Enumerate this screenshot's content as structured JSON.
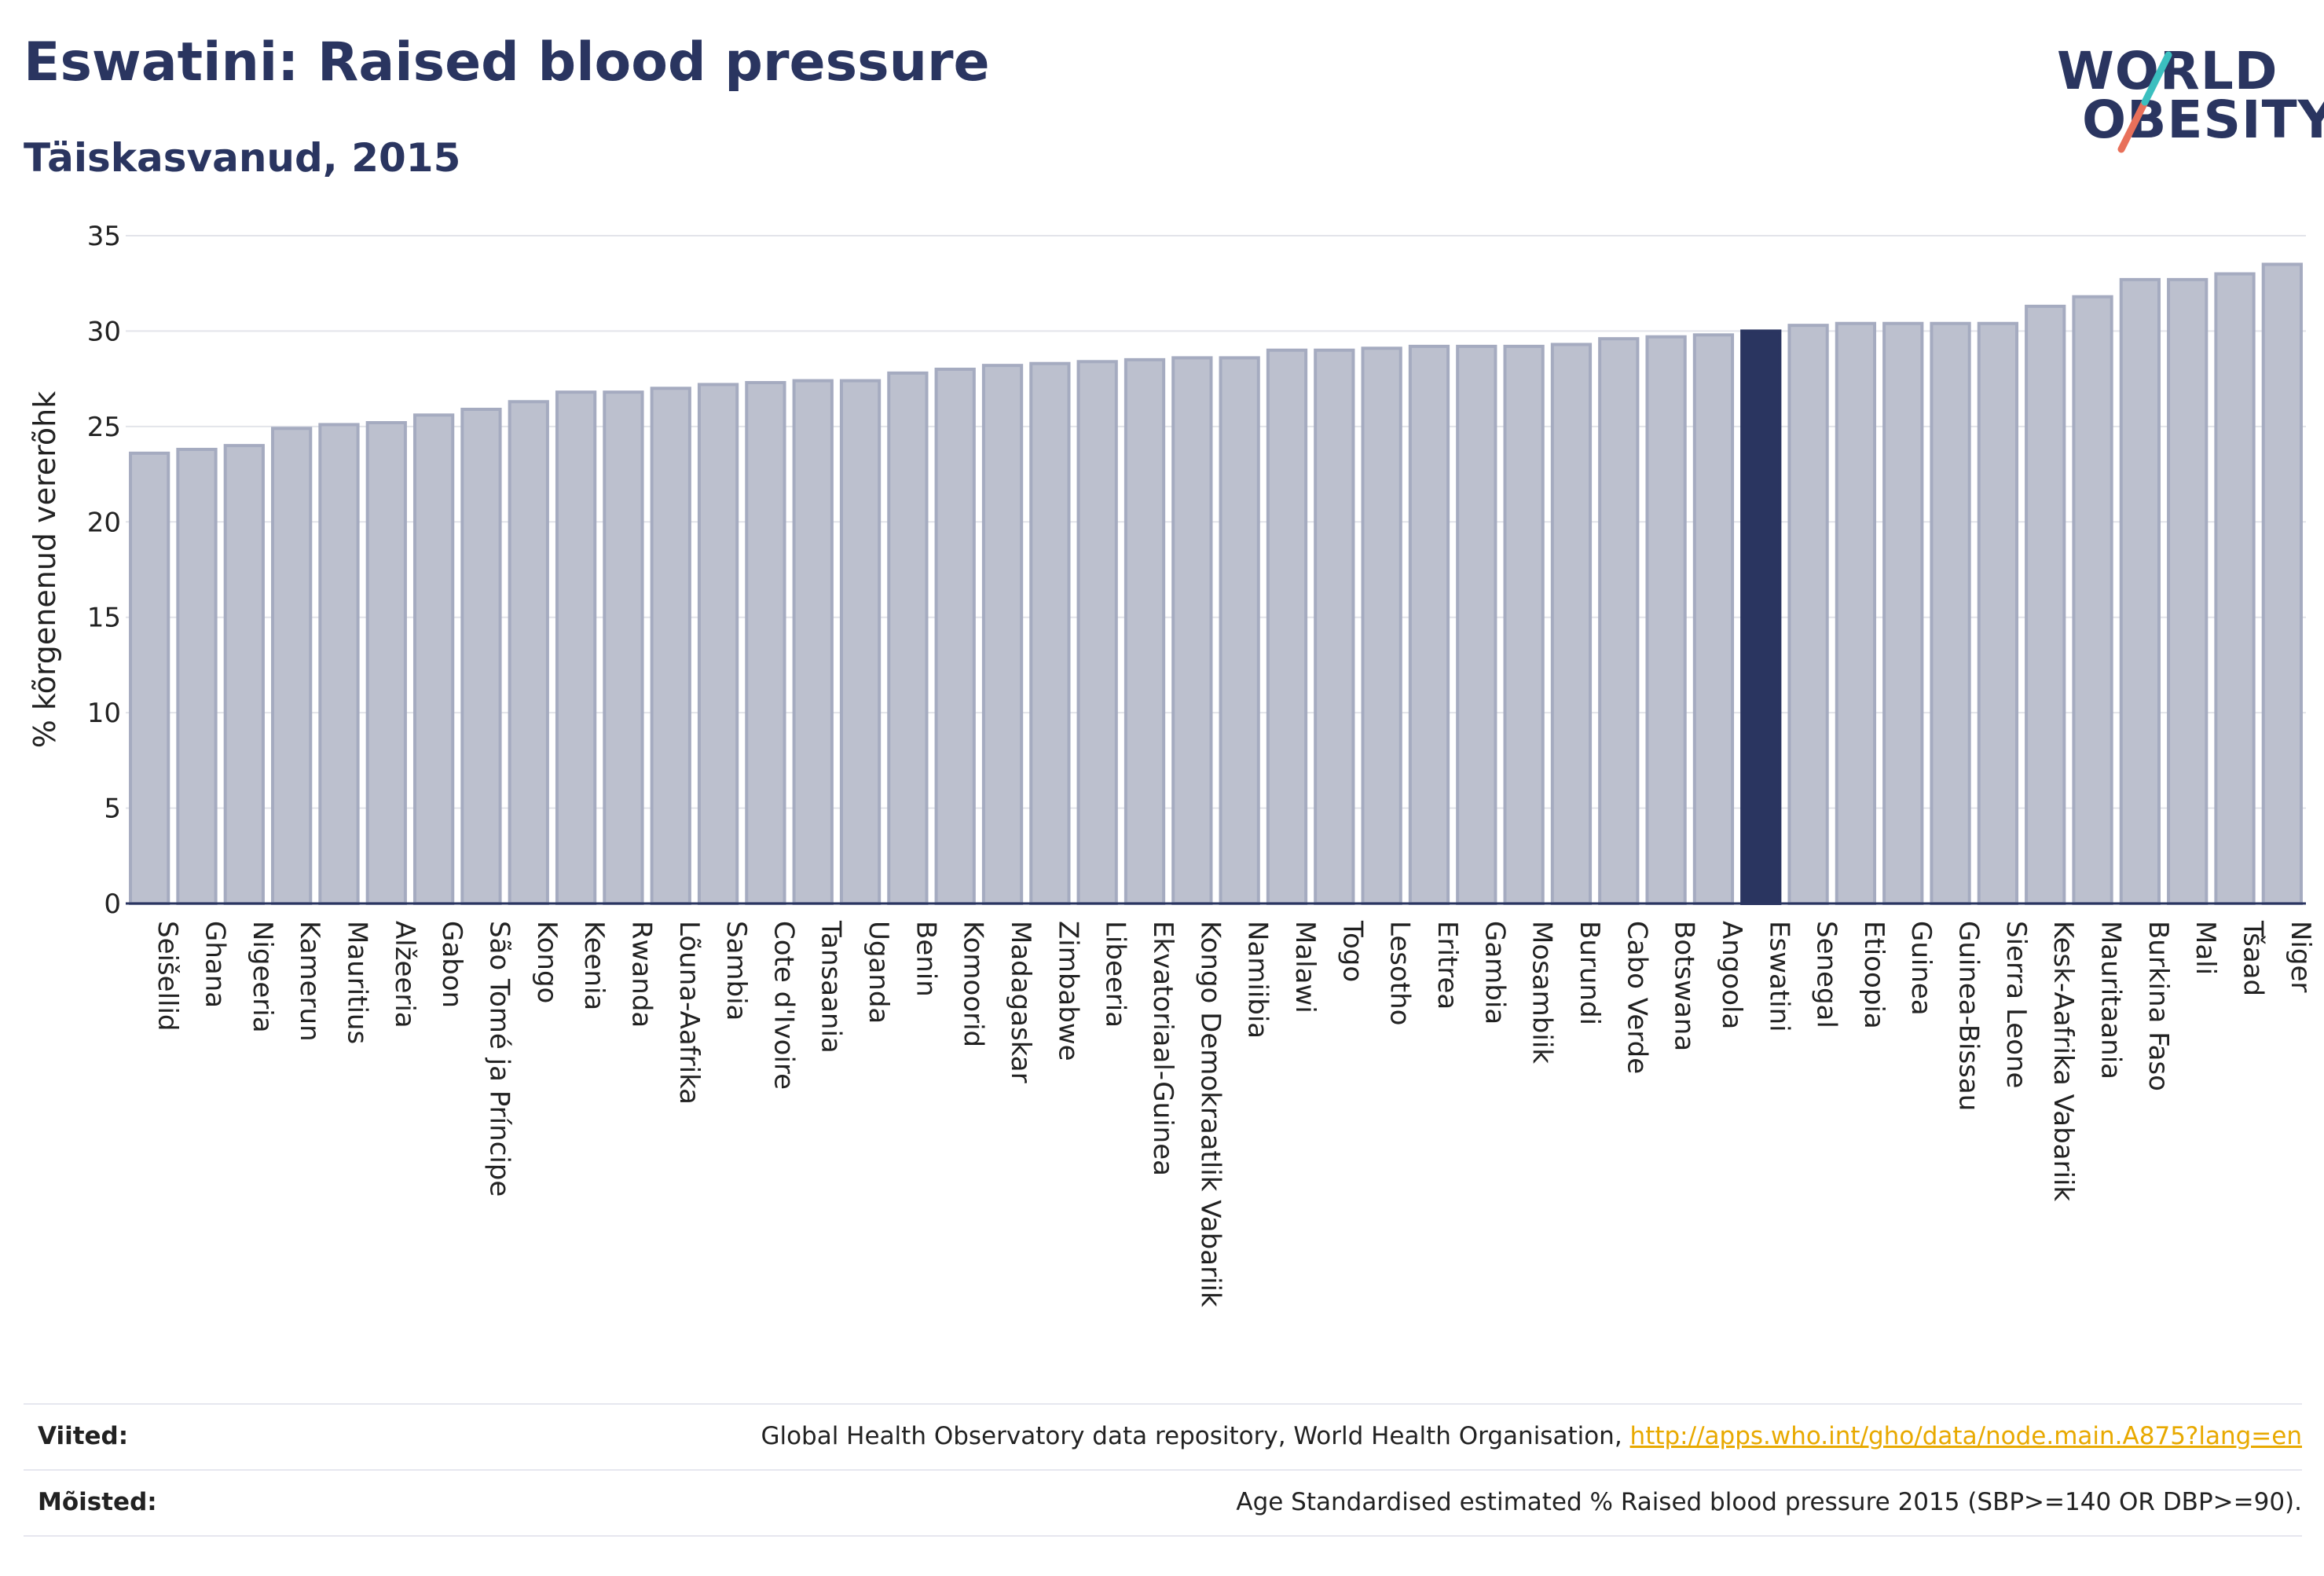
{
  "header": {
    "title": "Eswatini: Raised blood pressure",
    "subtitle": "Täiskasvanud, 2015"
  },
  "logo": {
    "line1": "WORLD",
    "line2": "OBESITY",
    "colors": {
      "text": "#2a3560",
      "slash_top": "#3bbfbf",
      "slash_bottom": "#e8705a"
    }
  },
  "chart_data": {
    "type": "bar",
    "title": "",
    "ylabel": "% kõrgenenud vererõhk",
    "xlabel": "",
    "ylim": [
      0,
      35
    ],
    "yticks": [
      0,
      5,
      10,
      15,
      20,
      25,
      30,
      35
    ],
    "grid": true,
    "highlight": "Eswatini",
    "colors": {
      "bar": "#bcc0ce",
      "bar_edge": "#a5abc0",
      "highlight": "#2a3560",
      "grid": "#e3e4ea"
    },
    "categories": [
      "Seišellid",
      "Ghana",
      "Nigeeria",
      "Kamerun",
      "Mauritius",
      "Alžeeria",
      "Gabon",
      "São Tomé ja Príncipe",
      "Kongo",
      "Keenia",
      "Rwanda",
      "Lõuna-Aafrika",
      "Sambia",
      "Cote d'Ivoire",
      "Tansaania",
      "Uganda",
      "Benin",
      "Komoorid",
      "Madagaskar",
      "Zimbabwe",
      "Libeeria",
      "Ekvatoriaal-Guinea",
      "Kongo Demokraatlik Vabariik",
      "Namiibia",
      "Malawi",
      "Togo",
      "Lesotho",
      "Eritrea",
      "Gambia",
      "Mosambiik",
      "Burundi",
      "Cabo Verde",
      "Botswana",
      "Angoola",
      "Eswatini",
      "Senegal",
      "Etioopia",
      "Guinea",
      "Guinea-Bissau",
      "Sierra Leone",
      "Kesk-Aafrika Vabariik",
      "Mauritaania",
      "Burkina Faso",
      "Mali",
      "Tšaad",
      "Niger"
    ],
    "values": [
      23.6,
      23.8,
      24.0,
      24.9,
      25.1,
      25.2,
      25.6,
      25.9,
      26.3,
      26.8,
      26.8,
      27.0,
      27.2,
      27.3,
      27.4,
      27.4,
      27.8,
      28.0,
      28.2,
      28.3,
      28.4,
      28.5,
      28.6,
      28.6,
      29.0,
      29.0,
      29.1,
      29.2,
      29.2,
      29.2,
      29.3,
      29.6,
      29.7,
      29.8,
      30.0,
      30.3,
      30.4,
      30.4,
      30.4,
      30.4,
      31.3,
      31.8,
      32.7,
      32.7,
      33.0,
      33.5
    ]
  },
  "footer": {
    "sources_label": "Viited:",
    "sources_text": "Global Health Observatory data repository, World Health Organisation, ",
    "sources_link": "http://apps.who.int/gho/data/node.main.A875?lang=en",
    "definitions_label": "Mõisted:",
    "definitions_text": "Age Standardised estimated % Raised blood pressure 2015 (SBP>=140 OR DBP>=90)."
  }
}
